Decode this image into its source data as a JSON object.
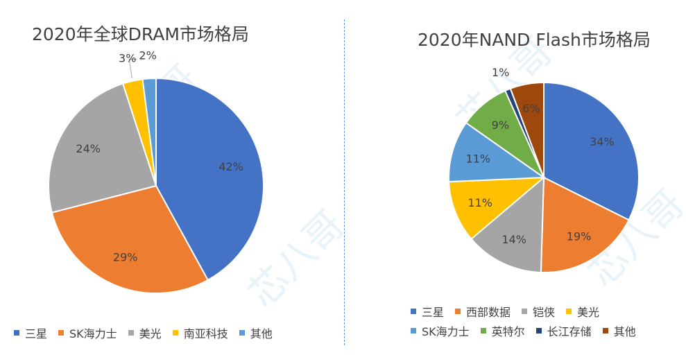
{
  "watermark_text": "芯八哥",
  "chart_data": [
    {
      "type": "pie",
      "title": "2020年全球DRAM市场格局",
      "categories": [
        "三星",
        "SK海力士",
        "美光",
        "南亚科技",
        "其他"
      ],
      "values": [
        42,
        29,
        24,
        3,
        2
      ],
      "labels": [
        "42%",
        "29%",
        "24%",
        "3%",
        "2%"
      ],
      "colors": [
        "#4472c4",
        "#ed7d31",
        "#a5a5a5",
        "#ffc000",
        "#5b9bd5"
      ],
      "legend": "bottom"
    },
    {
      "type": "pie",
      "title": "2020年NAND Flash市场格局",
      "categories": [
        "三星",
        "西部数据",
        "铠侠",
        "美光",
        "SK海力士",
        "英特尔",
        "长江存储",
        "其他"
      ],
      "values": [
        34,
        19,
        14,
        11,
        11,
        9,
        1,
        6
      ],
      "labels": [
        "34%",
        "19%",
        "14%",
        "11%",
        "11%",
        "9%",
        "1%",
        "6%"
      ],
      "colors": [
        "#4472c4",
        "#ed7d31",
        "#a5a5a5",
        "#ffc000",
        "#5b9bd5",
        "#70ad47",
        "#264478",
        "#9e480e"
      ],
      "legend": "bottom"
    }
  ]
}
